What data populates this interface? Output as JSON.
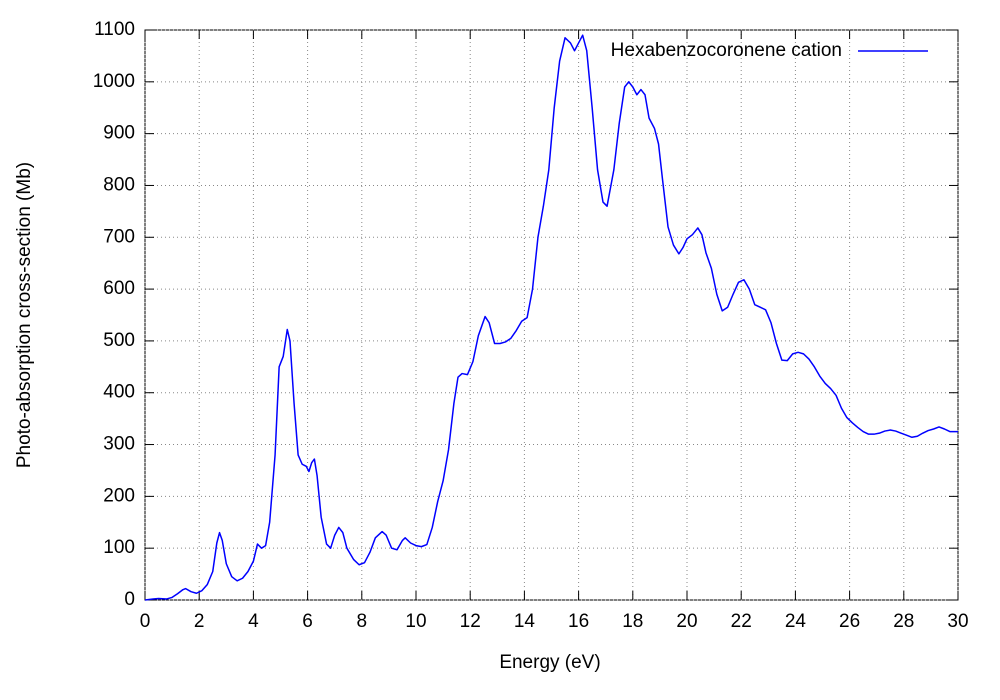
{
  "chart_data": {
    "type": "line",
    "x_label": "Energy (eV)",
    "y_label": "Photo-absorption cross-section (Mb)",
    "x": [
      0,
      0.3,
      0.5,
      0.8,
      1.0,
      1.2,
      1.4,
      1.5,
      1.7,
      1.9,
      2.1,
      2.3,
      2.5,
      2.65,
      2.75,
      2.85,
      3.0,
      3.2,
      3.4,
      3.6,
      3.8,
      4.0,
      4.15,
      4.3,
      4.45,
      4.6,
      4.8,
      4.95,
      5.1,
      5.25,
      5.35,
      5.5,
      5.65,
      5.8,
      5.95,
      6.05,
      6.15,
      6.25,
      6.35,
      6.5,
      6.7,
      6.85,
      7.0,
      7.15,
      7.3,
      7.45,
      7.7,
      7.9,
      8.1,
      8.3,
      8.5,
      8.75,
      8.9,
      9.1,
      9.3,
      9.5,
      9.6,
      9.8,
      10.0,
      10.2,
      10.4,
      10.6,
      10.8,
      11.0,
      11.2,
      11.4,
      11.55,
      11.7,
      11.9,
      12.1,
      12.3,
      12.55,
      12.7,
      12.9,
      13.1,
      13.3,
      13.5,
      13.7,
      13.9,
      14.1,
      14.3,
      14.5,
      14.7,
      14.9,
      15.1,
      15.3,
      15.5,
      15.7,
      15.85,
      16.0,
      16.15,
      16.3,
      16.5,
      16.7,
      16.9,
      17.05,
      17.3,
      17.5,
      17.7,
      17.85,
      18.0,
      18.15,
      18.3,
      18.45,
      18.6,
      18.8,
      18.95,
      19.1,
      19.3,
      19.5,
      19.7,
      19.85,
      20.0,
      20.2,
      20.4,
      20.55,
      20.7,
      20.9,
      21.1,
      21.3,
      21.5,
      21.7,
      21.9,
      22.1,
      22.3,
      22.5,
      22.7,
      22.9,
      23.1,
      23.3,
      23.5,
      23.7,
      23.9,
      24.1,
      24.3,
      24.5,
      24.7,
      24.9,
      25.1,
      25.3,
      25.5,
      25.7,
      25.9,
      26.1,
      26.3,
      26.5,
      26.7,
      26.9,
      27.1,
      27.3,
      27.5,
      27.7,
      27.9,
      28.1,
      28.3,
      28.5,
      28.7,
      28.9,
      29.1,
      29.3,
      29.5,
      29.7,
      30
    ],
    "series": [
      {
        "name": "Hexabenzocoronene cation",
        "color": "#0000ff",
        "values": [
          0,
          2,
          3,
          2,
          5,
          12,
          20,
          22,
          16,
          13,
          18,
          30,
          55,
          110,
          130,
          115,
          70,
          45,
          37,
          42,
          55,
          75,
          108,
          100,
          105,
          150,
          280,
          450,
          470,
          522,
          500,
          380,
          280,
          262,
          258,
          248,
          265,
          272,
          240,
          160,
          108,
          100,
          125,
          140,
          130,
          100,
          78,
          68,
          72,
          92,
          120,
          132,
          125,
          100,
          97,
          115,
          120,
          110,
          105,
          103,
          107,
          140,
          190,
          230,
          290,
          380,
          430,
          437,
          435,
          460,
          510,
          547,
          535,
          495,
          495,
          498,
          505,
          520,
          538,
          545,
          600,
          700,
          760,
          830,
          950,
          1040,
          1085,
          1075,
          1060,
          1075,
          1090,
          1060,
          950,
          830,
          768,
          760,
          830,
          920,
          990,
          1000,
          990,
          975,
          985,
          975,
          930,
          910,
          880,
          810,
          720,
          685,
          668,
          680,
          697,
          705,
          718,
          705,
          670,
          640,
          590,
          558,
          565,
          590,
          613,
          618,
          600,
          570,
          565,
          560,
          535,
          495,
          463,
          462,
          475,
          478,
          475,
          465,
          450,
          432,
          418,
          408,
          395,
          370,
          352,
          342,
          333,
          325,
          320,
          320,
          322,
          326,
          328,
          326,
          322,
          318,
          314,
          316,
          322,
          327,
          330,
          334,
          330,
          325,
          325
        ]
      }
    ],
    "xlim": [
      0,
      30
    ],
    "xticks": [
      0,
      2,
      4,
      6,
      8,
      10,
      12,
      14,
      16,
      18,
      20,
      22,
      24,
      26,
      28,
      30
    ],
    "ylim": [
      0,
      1100
    ],
    "yticks": [
      0,
      100,
      200,
      300,
      400,
      500,
      600,
      700,
      800,
      900,
      1000,
      1100
    ],
    "grid": true,
    "legend": "top-right"
  }
}
